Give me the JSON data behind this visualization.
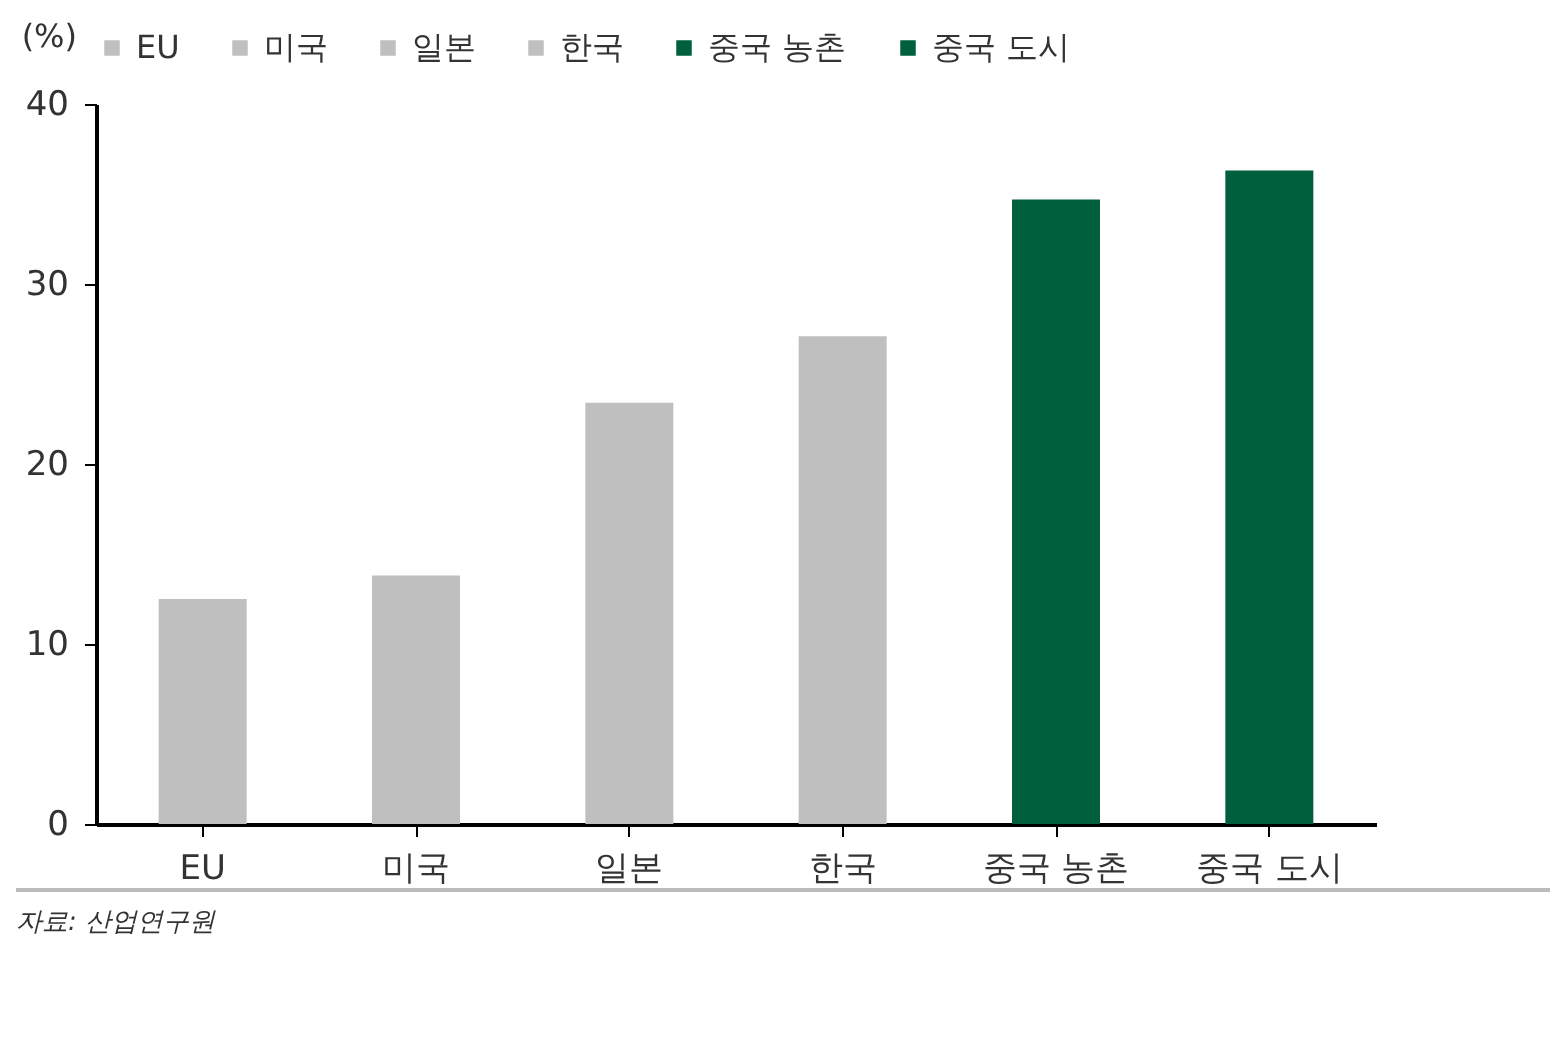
{
  "chart_data": {
    "type": "bar",
    "ylabel": "(%)",
    "categories": [
      "EU",
      "미국",
      "일본",
      "한국",
      "중국 농촌",
      "중국 도시"
    ],
    "series": [
      {
        "name": "EU",
        "color": "#bfbfbf",
        "values": [
          12.5,
          null,
          null,
          null,
          null,
          null
        ]
      },
      {
        "name": "미국",
        "color": "#bfbfbf",
        "values": [
          null,
          13.8,
          null,
          null,
          null,
          null
        ]
      },
      {
        "name": "일본",
        "color": "#bfbfbf",
        "values": [
          null,
          null,
          23.4,
          null,
          null,
          null
        ]
      },
      {
        "name": "한국",
        "color": "#bfbfbf",
        "values": [
          null,
          null,
          null,
          27.1,
          null,
          null
        ]
      },
      {
        "name": "중국 농촌",
        "color": "#005f3c",
        "values": [
          null,
          null,
          null,
          null,
          34.7,
          null
        ]
      },
      {
        "name": "중국 도시",
        "color": "#005f3c",
        "values": [
          null,
          null,
          null,
          null,
          null,
          36.3
        ]
      }
    ],
    "ylim": [
      0,
      40
    ],
    "yticks": [
      0,
      10,
      20,
      30,
      40
    ],
    "grid": false,
    "legend": "top",
    "annotations": [
      "자료: 산업연구원"
    ]
  }
}
